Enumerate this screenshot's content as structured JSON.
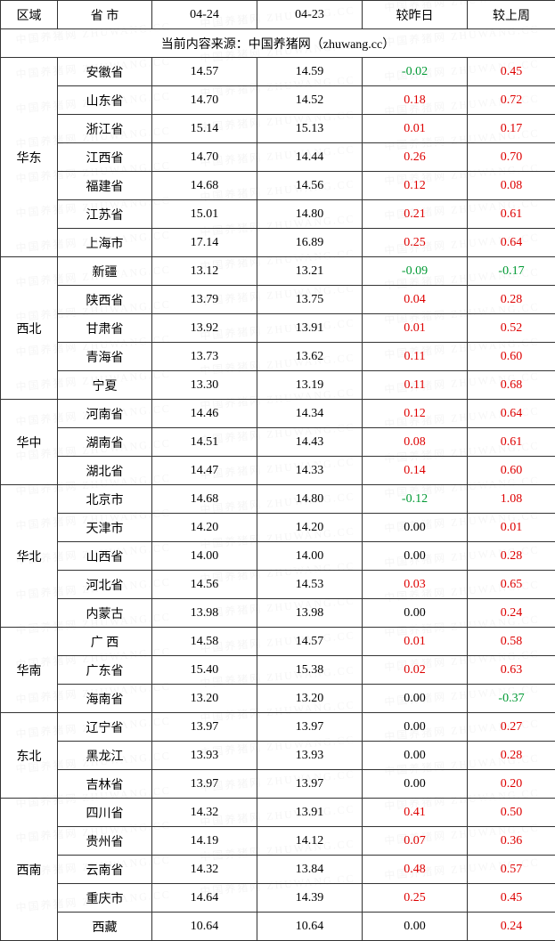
{
  "headers": {
    "region": "区域",
    "province": "省 市",
    "date1": "04-24",
    "date2": "04-23",
    "vs_yesterday": "较昨日",
    "vs_lastweek": "较上周"
  },
  "source_text": "当前内容来源：中国养猪网（zhuwang.cc）",
  "watermark_text": "中国养猪网 ZHUWANG.CC",
  "color_pos": "#d00",
  "color_neg": "#009933",
  "regions": [
    {
      "name": "华东",
      "rows": [
        {
          "prov": "安徽省",
          "d1": "14.57",
          "d2": "14.59",
          "dy": "-0.02",
          "dy_cls": "neg",
          "dw": "0.45",
          "dw_cls": "pos"
        },
        {
          "prov": "山东省",
          "d1": "14.70",
          "d2": "14.52",
          "dy": "0.18",
          "dy_cls": "pos",
          "dw": "0.72",
          "dw_cls": "pos"
        },
        {
          "prov": "浙江省",
          "d1": "15.14",
          "d2": "15.13",
          "dy": "0.01",
          "dy_cls": "pos",
          "dw": "0.17",
          "dw_cls": "pos"
        },
        {
          "prov": "江西省",
          "d1": "14.70",
          "d2": "14.44",
          "dy": "0.26",
          "dy_cls": "pos",
          "dw": "0.70",
          "dw_cls": "pos"
        },
        {
          "prov": "福建省",
          "d1": "14.68",
          "d2": "14.56",
          "dy": "0.12",
          "dy_cls": "pos",
          "dw": "0.08",
          "dw_cls": "pos"
        },
        {
          "prov": "江苏省",
          "d1": "15.01",
          "d2": "14.80",
          "dy": "0.21",
          "dy_cls": "pos",
          "dw": "0.61",
          "dw_cls": "pos"
        },
        {
          "prov": "上海市",
          "d1": "17.14",
          "d2": "16.89",
          "dy": "0.25",
          "dy_cls": "pos",
          "dw": "0.64",
          "dw_cls": "pos"
        }
      ]
    },
    {
      "name": "西北",
      "rows": [
        {
          "prov": "新疆",
          "d1": "13.12",
          "d2": "13.21",
          "dy": "-0.09",
          "dy_cls": "neg",
          "dw": "-0.17",
          "dw_cls": "neg"
        },
        {
          "prov": "陕西省",
          "d1": "13.79",
          "d2": "13.75",
          "dy": "0.04",
          "dy_cls": "pos",
          "dw": "0.28",
          "dw_cls": "pos"
        },
        {
          "prov": "甘肃省",
          "d1": "13.92",
          "d2": "13.91",
          "dy": "0.01",
          "dy_cls": "pos",
          "dw": "0.52",
          "dw_cls": "pos"
        },
        {
          "prov": "青海省",
          "d1": "13.73",
          "d2": "13.62",
          "dy": "0.11",
          "dy_cls": "pos",
          "dw": "0.60",
          "dw_cls": "pos"
        },
        {
          "prov": "宁夏",
          "d1": "13.30",
          "d2": "13.19",
          "dy": "0.11",
          "dy_cls": "pos",
          "dw": "0.68",
          "dw_cls": "pos"
        }
      ]
    },
    {
      "name": "华中",
      "rows": [
        {
          "prov": "河南省",
          "d1": "14.46",
          "d2": "14.34",
          "dy": "0.12",
          "dy_cls": "pos",
          "dw": "0.64",
          "dw_cls": "pos"
        },
        {
          "prov": "湖南省",
          "d1": "14.51",
          "d2": "14.43",
          "dy": "0.08",
          "dy_cls": "pos",
          "dw": "0.61",
          "dw_cls": "pos"
        },
        {
          "prov": "湖北省",
          "d1": "14.47",
          "d2": "14.33",
          "dy": "0.14",
          "dy_cls": "pos",
          "dw": "0.60",
          "dw_cls": "pos"
        }
      ]
    },
    {
      "name": "华北",
      "rows": [
        {
          "prov": "北京市",
          "d1": "14.68",
          "d2": "14.80",
          "dy": "-0.12",
          "dy_cls": "neg",
          "dw": "1.08",
          "dw_cls": "pos"
        },
        {
          "prov": "天津市",
          "d1": "14.20",
          "d2": "14.20",
          "dy": "0.00",
          "dy_cls": "zero",
          "dw": "0.01",
          "dw_cls": "pos"
        },
        {
          "prov": "山西省",
          "d1": "14.00",
          "d2": "14.00",
          "dy": "0.00",
          "dy_cls": "zero",
          "dw": "0.28",
          "dw_cls": "pos"
        },
        {
          "prov": "河北省",
          "d1": "14.56",
          "d2": "14.53",
          "dy": "0.03",
          "dy_cls": "pos",
          "dw": "0.65",
          "dw_cls": "pos"
        },
        {
          "prov": "内蒙古",
          "d1": "13.98",
          "d2": "13.98",
          "dy": "0.00",
          "dy_cls": "zero",
          "dw": "0.24",
          "dw_cls": "pos"
        }
      ]
    },
    {
      "name": "华南",
      "rows": [
        {
          "prov": "广 西",
          "d1": "14.58",
          "d2": "14.57",
          "dy": "0.01",
          "dy_cls": "pos",
          "dw": "0.58",
          "dw_cls": "pos"
        },
        {
          "prov": "广东省",
          "d1": "15.40",
          "d2": "15.38",
          "dy": "0.02",
          "dy_cls": "pos",
          "dw": "0.63",
          "dw_cls": "pos"
        },
        {
          "prov": "海南省",
          "d1": "13.20",
          "d2": "13.20",
          "dy": "0.00",
          "dy_cls": "zero",
          "dw": "-0.37",
          "dw_cls": "neg"
        }
      ]
    },
    {
      "name": "东北",
      "rows": [
        {
          "prov": "辽宁省",
          "d1": "13.97",
          "d2": "13.97",
          "dy": "0.00",
          "dy_cls": "zero",
          "dw": "0.27",
          "dw_cls": "pos"
        },
        {
          "prov": "黑龙江",
          "d1": "13.93",
          "d2": "13.93",
          "dy": "0.00",
          "dy_cls": "zero",
          "dw": "0.28",
          "dw_cls": "pos"
        },
        {
          "prov": "吉林省",
          "d1": "13.97",
          "d2": "13.97",
          "dy": "0.00",
          "dy_cls": "zero",
          "dw": "0.20",
          "dw_cls": "pos"
        }
      ]
    },
    {
      "name": "西南",
      "rows": [
        {
          "prov": "四川省",
          "d1": "14.32",
          "d2": "13.91",
          "dy": "0.41",
          "dy_cls": "pos",
          "dw": "0.50",
          "dw_cls": "pos"
        },
        {
          "prov": "贵州省",
          "d1": "14.19",
          "d2": "14.12",
          "dy": "0.07",
          "dy_cls": "pos",
          "dw": "0.36",
          "dw_cls": "pos"
        },
        {
          "prov": "云南省",
          "d1": "14.32",
          "d2": "13.84",
          "dy": "0.48",
          "dy_cls": "pos",
          "dw": "0.57",
          "dw_cls": "pos"
        },
        {
          "prov": "重庆市",
          "d1": "14.64",
          "d2": "14.39",
          "dy": "0.25",
          "dy_cls": "pos",
          "dw": "0.45",
          "dw_cls": "pos"
        },
        {
          "prov": "西藏",
          "d1": "10.64",
          "d2": "10.64",
          "dy": "0.00",
          "dy_cls": "zero",
          "dw": "0.24",
          "dw_cls": "pos"
        }
      ]
    }
  ]
}
